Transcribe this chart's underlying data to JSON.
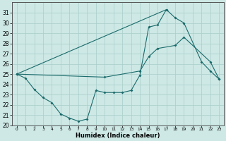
{
  "xlabel": "Humidex (Indice chaleur)",
  "bg_color": "#cde8e5",
  "grid_color": "#a8ceca",
  "line_color": "#1a6b6b",
  "ylim": [
    20,
    32
  ],
  "xlim": [
    -0.5,
    23.5
  ],
  "yticks": [
    20,
    21,
    22,
    23,
    24,
    25,
    26,
    27,
    28,
    29,
    30,
    31
  ],
  "xticks": [
    0,
    1,
    2,
    3,
    4,
    5,
    6,
    7,
    8,
    9,
    10,
    11,
    12,
    13,
    14,
    15,
    16,
    17,
    18,
    19,
    20,
    21,
    22,
    23
  ],
  "line1_x": [
    0,
    1,
    2,
    3,
    4,
    5,
    6,
    7,
    8,
    9,
    10,
    11,
    12,
    13,
    14,
    15,
    16,
    17
  ],
  "line1_y": [
    25.0,
    24.6,
    23.5,
    22.7,
    22.2,
    21.1,
    20.7,
    20.4,
    20.6,
    23.4,
    23.2,
    23.2,
    23.2,
    23.4,
    24.9,
    29.6,
    29.8,
    31.3
  ],
  "line2_x": [
    0,
    10,
    14,
    15,
    16,
    18,
    19,
    22,
    23
  ],
  "line2_y": [
    25.0,
    24.7,
    25.3,
    26.7,
    27.5,
    27.8,
    28.6,
    26.2,
    24.5
  ],
  "line3_x": [
    0,
    17,
    18,
    19,
    21,
    22,
    23
  ],
  "line3_y": [
    25.0,
    31.3,
    30.5,
    30.0,
    26.2,
    25.3,
    24.5
  ]
}
